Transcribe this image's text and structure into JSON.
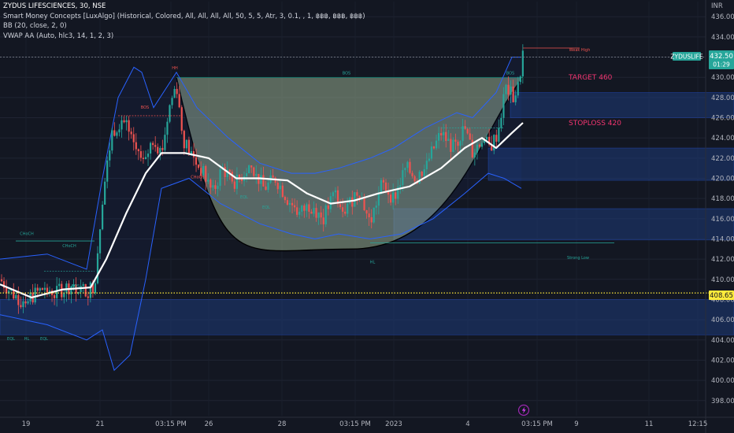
{
  "header": {
    "symbol": "ZYDUS LIFESCIENCES, 30, NSE",
    "indicators": [
      "Smart Money Concepts [LuxAlgo] (Historical, Colored, All, All, All, All, 50, 5, 5, Atr, 3, 0.1, , 1, ฿฿฿, ฿฿฿, ฿฿฿)",
      "BB (20, close, 2, 0)",
      "VWAP AA (Auto, hlc3, 14, 1, 2, 3)"
    ],
    "currency": "INR"
  },
  "price_tags": {
    "symbol_tag": "ZYDUSLIFE",
    "last_price": "432.50",
    "countdown": "01:29",
    "level_price": "408.65"
  },
  "colors": {
    "background": "#131722",
    "up": "#26a69a",
    "down": "#ef5350",
    "band": "#2962ff",
    "cup_fill": "#8a9e86",
    "vwap": "#ffffff",
    "level": "#ffeb3b",
    "target": "#f23570",
    "zone": "#1e3a78"
  },
  "chart_data": {
    "type": "candlestick",
    "ylim": [
      396.5,
      437.5
    ],
    "y_ticks": [
      398,
      400,
      402,
      404,
      406,
      408,
      410,
      412,
      414,
      416,
      418,
      420,
      422,
      424,
      426,
      428,
      430,
      432,
      434,
      436
    ],
    "x_ticks": [
      {
        "label": "19",
        "x": 33
      },
      {
        "label": "21",
        "x": 127
      },
      {
        "label": "03:15 PM",
        "x": 217
      },
      {
        "label": "26",
        "x": 265
      },
      {
        "label": "28",
        "x": 358
      },
      {
        "label": "03:15 PM",
        "x": 451
      },
      {
        "label": "2023",
        "x": 500
      },
      {
        "label": "4",
        "x": 594
      },
      {
        "label": "03:15 PM",
        "x": 682
      },
      {
        "label": "9",
        "x": 732
      },
      {
        "label": "11",
        "x": 824
      },
      {
        "label": "12:15",
        "x": 886
      }
    ],
    "anchors": [
      [
        0,
        410.0
      ],
      [
        16,
        408.6
      ],
      [
        28,
        407.9
      ],
      [
        40,
        408.3
      ],
      [
        55,
        409.1
      ],
      [
        70,
        408.7
      ],
      [
        90,
        409.4
      ],
      [
        110,
        408.8
      ],
      [
        120,
        409.5
      ],
      [
        130,
        418.0
      ],
      [
        142,
        424.5
      ],
      [
        155,
        426.0
      ],
      [
        168,
        423.5
      ],
      [
        182,
        421.5
      ],
      [
        195,
        424.0
      ],
      [
        205,
        422.5
      ],
      [
        215,
        427.0
      ],
      [
        224,
        429.5
      ],
      [
        232,
        424.0
      ],
      [
        245,
        422.0
      ],
      [
        258,
        420.5
      ],
      [
        270,
        418.5
      ],
      [
        282,
        421.0
      ],
      [
        300,
        419.5
      ],
      [
        318,
        421.5
      ],
      [
        335,
        419.0
      ],
      [
        350,
        420.0
      ],
      [
        365,
        418.0
      ],
      [
        380,
        416.5
      ],
      [
        395,
        417.5
      ],
      [
        410,
        416.0
      ],
      [
        425,
        418.5
      ],
      [
        440,
        417.0
      ],
      [
        455,
        419.0
      ],
      [
        470,
        415.5
      ],
      [
        485,
        419.5
      ],
      [
        500,
        418.0
      ],
      [
        515,
        421.0
      ],
      [
        530,
        420.0
      ],
      [
        545,
        422.0
      ],
      [
        560,
        424.5
      ],
      [
        575,
        423.0
      ],
      [
        590,
        425.0
      ],
      [
        600,
        422.5
      ],
      [
        612,
        424.0
      ],
      [
        622,
        423.0
      ],
      [
        632,
        424.5
      ],
      [
        642,
        429.0
      ],
      [
        652,
        428.0
      ],
      [
        658,
        429.0
      ],
      [
        664,
        432.5
      ]
    ],
    "bollinger": {
      "upper": [
        [
          0,
          412.0
        ],
        [
          60,
          412.5
        ],
        [
          110,
          411.0
        ],
        [
          130,
          420.0
        ],
        [
          150,
          428.0
        ],
        [
          170,
          431.0
        ],
        [
          180,
          430.5
        ],
        [
          195,
          427.0
        ],
        [
          224,
          430.5
        ],
        [
          250,
          427.0
        ],
        [
          290,
          424.0
        ],
        [
          330,
          421.5
        ],
        [
          370,
          420.5
        ],
        [
          400,
          420.5
        ],
        [
          430,
          421.0
        ],
        [
          470,
          422.0
        ],
        [
          500,
          423.0
        ],
        [
          540,
          425.0
        ],
        [
          580,
          426.5
        ],
        [
          600,
          426.0
        ],
        [
          630,
          428.5
        ],
        [
          650,
          432.0
        ],
        [
          662,
          432.0
        ]
      ],
      "lower": [
        [
          0,
          406.5
        ],
        [
          60,
          405.5
        ],
        [
          110,
          404.0
        ],
        [
          130,
          405.0
        ],
        [
          145,
          401.0
        ],
        [
          165,
          402.5
        ],
        [
          185,
          410.0
        ],
        [
          205,
          419.0
        ],
        [
          240,
          420.0
        ],
        [
          280,
          417.5
        ],
        [
          330,
          415.5
        ],
        [
          370,
          414.5
        ],
        [
          400,
          414.0
        ],
        [
          430,
          414.5
        ],
        [
          470,
          414.0
        ],
        [
          510,
          414.5
        ],
        [
          550,
          416.0
        ],
        [
          590,
          418.5
        ],
        [
          620,
          420.5
        ],
        [
          640,
          420.0
        ],
        [
          662,
          419.0
        ]
      ]
    },
    "vwap": [
      [
        0,
        409.5
      ],
      [
        40,
        408.2
      ],
      [
        80,
        409.0
      ],
      [
        115,
        409.2
      ],
      [
        135,
        412.0
      ],
      [
        160,
        416.5
      ],
      [
        185,
        420.5
      ],
      [
        205,
        422.5
      ],
      [
        235,
        422.5
      ],
      [
        265,
        422.0
      ],
      [
        300,
        420.0
      ],
      [
        330,
        420.0
      ],
      [
        365,
        419.8
      ],
      [
        390,
        418.5
      ],
      [
        420,
        417.5
      ],
      [
        450,
        417.8
      ],
      [
        480,
        418.5
      ],
      [
        520,
        419.2
      ],
      [
        560,
        421.0
      ],
      [
        590,
        423.0
      ],
      [
        612,
        424.0
      ],
      [
        630,
        423.0
      ],
      [
        650,
        424.5
      ],
      [
        664,
        425.5
      ]
    ],
    "cup": {
      "rim_left": [
        224,
        430.0
      ],
      "rim_right": [
        664,
        430.0
      ],
      "bottom": [
        445,
        413.0
      ]
    },
    "zones": [
      {
        "x0": 648,
        "x1": 932,
        "y_top": 428.5,
        "y_bottom": 426.0
      },
      {
        "x0": 620,
        "x1": 932,
        "y_top": 423.0,
        "y_bottom": 419.8
      },
      {
        "x0": 500,
        "x1": 932,
        "y_top": 417.0,
        "y_bottom": 413.9
      },
      {
        "x0": 0,
        "x1": 932,
        "y_top": 408.0,
        "y_bottom": 404.5
      }
    ],
    "levels": {
      "horizontal_dashed": 432.0,
      "dotted_yellow": 408.65
    },
    "annotations": {
      "target": {
        "text": "TARGET 460",
        "price": 430.0,
        "x": 722
      },
      "stoploss": {
        "text": "STOPLOSS 420",
        "price": 425.5,
        "x": 722
      }
    },
    "smc_labels": [
      {
        "text": "HH",
        "x": 222,
        "price": 430.8,
        "color": "#ef5350"
      },
      {
        "text": "BOS",
        "x": 440,
        "price": 430.3,
        "color": "#26a69a"
      },
      {
        "text": "BOS",
        "x": 648,
        "price": 430.3,
        "color": "#26a69a"
      },
      {
        "text": "CHoCH",
        "x": 34,
        "price": 414.4,
        "color": "#26a69a"
      },
      {
        "text": "CHoCH",
        "x": 88,
        "price": 413.2,
        "color": "#26a69a"
      },
      {
        "text": "BOS",
        "x": 96,
        "price": 409.2,
        "color": "#26a69a"
      },
      {
        "text": "BOS",
        "x": 184,
        "price": 426.9,
        "color": "#ef5350"
      },
      {
        "text": "CHoCH",
        "x": 251,
        "price": 420.0,
        "color": "#ef5350"
      },
      {
        "text": "EQL",
        "x": 338,
        "price": 417.0,
        "color": "#26a69a"
      },
      {
        "text": "EQL",
        "x": 310,
        "price": 418.0,
        "color": "#26a69a"
      },
      {
        "text": "HL",
        "x": 473,
        "price": 411.6,
        "color": "#26a69a"
      },
      {
        "text": "HL",
        "x": 34,
        "price": 404.0,
        "color": "#26a69a"
      },
      {
        "text": "EQL",
        "x": 14,
        "price": 404.0,
        "color": "#26a69a"
      },
      {
        "text": "EQL",
        "x": 56,
        "price": 404.0,
        "color": "#26a69a"
      },
      {
        "text": "Weak High",
        "x": 736,
        "price": 432.6,
        "color": "#ef5350"
      },
      {
        "text": "Strong Low",
        "x": 734,
        "price": 412.0,
        "color": "#26a69a"
      }
    ]
  }
}
